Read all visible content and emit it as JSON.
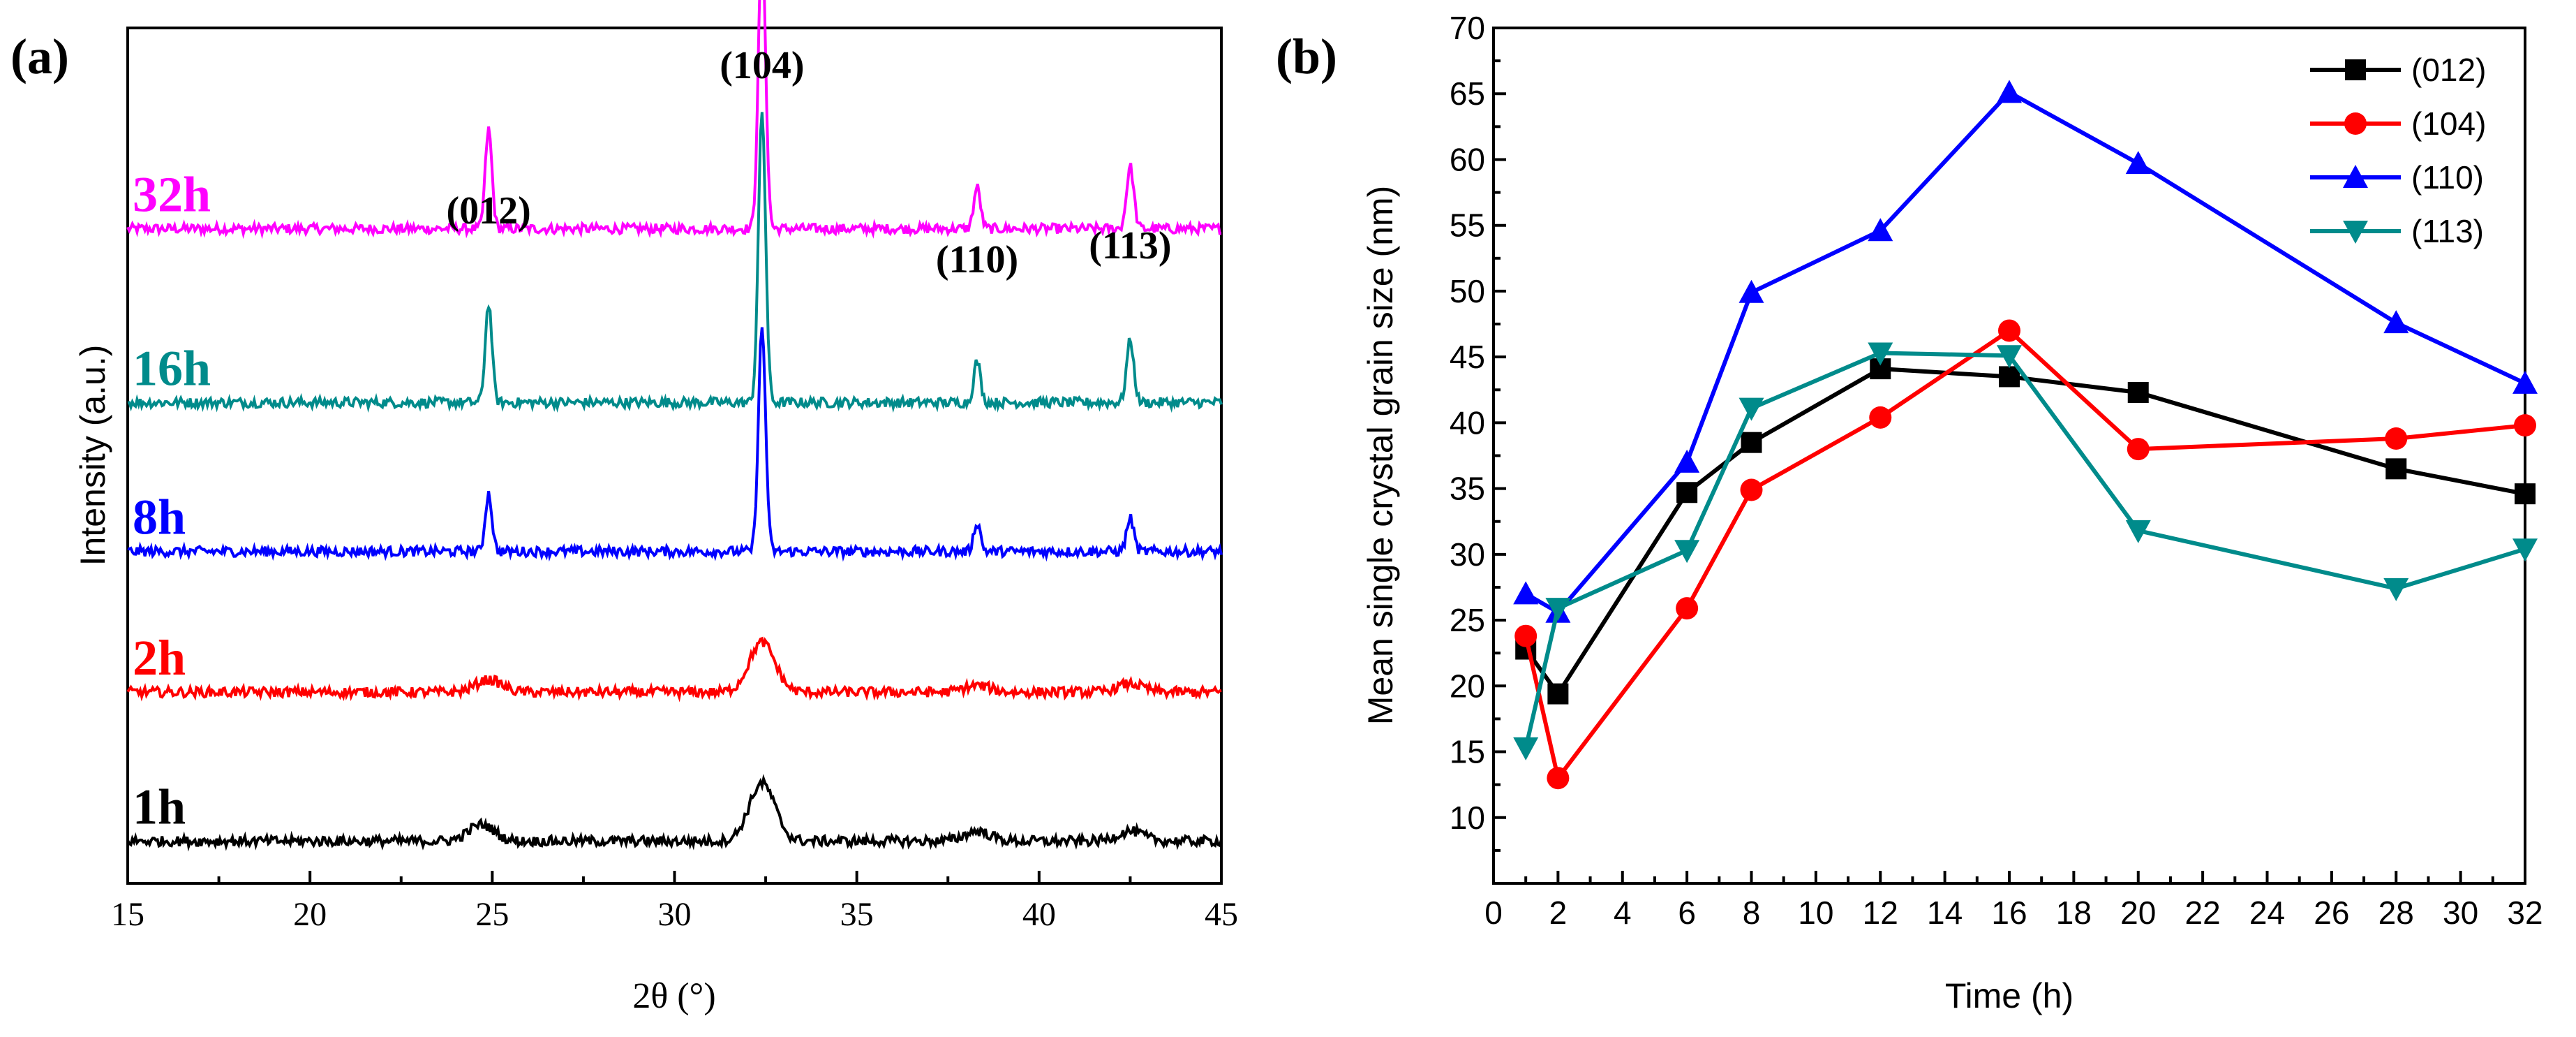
{
  "chart_data": [
    {
      "panel": "(a)",
      "type": "line",
      "xlabel": "2θ (°)",
      "ylabel": "Intensity (a.u.)",
      "xlim": [
        15,
        45
      ],
      "xticks": [
        15,
        20,
        25,
        30,
        35,
        40,
        45
      ],
      "peak_labels": [
        {
          "label": "(012)",
          "x": 24.9
        },
        {
          "label": "(104)",
          "x": 32.4
        },
        {
          "label": "(110)",
          "x": 38.3
        },
        {
          "label": "(113)",
          "x": 42.5
        }
      ],
      "series": [
        {
          "name": "32h",
          "color": "#ff00ff",
          "baseline": 0.77,
          "peaks": [
            {
              "x": 24.9,
              "h": 0.12,
              "w": 0.13
            },
            {
              "x": 32.4,
              "h": 0.35,
              "w": 0.14
            },
            {
              "x": 38.3,
              "h": 0.05,
              "w": 0.13
            },
            {
              "x": 42.5,
              "h": 0.075,
              "w": 0.14
            }
          ]
        },
        {
          "name": "16h",
          "color": "#008b8b",
          "baseline": 0.56,
          "peaks": [
            {
              "x": 24.9,
              "h": 0.12,
              "w": 0.13
            },
            {
              "x": 32.4,
              "h": 0.35,
              "w": 0.14
            },
            {
              "x": 38.3,
              "h": 0.05,
              "w": 0.13
            },
            {
              "x": 42.5,
              "h": 0.075,
              "w": 0.14
            }
          ]
        },
        {
          "name": "8h",
          "color": "#0000ff",
          "baseline": 0.38,
          "peaks": [
            {
              "x": 24.9,
              "h": 0.07,
              "w": 0.13
            },
            {
              "x": 32.4,
              "h": 0.27,
              "w": 0.14
            },
            {
              "x": 38.3,
              "h": 0.035,
              "w": 0.13
            },
            {
              "x": 42.5,
              "h": 0.04,
              "w": 0.14
            }
          ]
        },
        {
          "name": "2h",
          "color": "#ff0000",
          "baseline": 0.21,
          "peaks": [
            {
              "x": 24.9,
              "h": 0.015,
              "w": 0.5
            },
            {
              "x": 32.4,
              "h": 0.06,
              "w": 0.5
            },
            {
              "x": 38.3,
              "h": 0.008,
              "w": 0.5
            },
            {
              "x": 42.5,
              "h": 0.01,
              "w": 0.5
            }
          ]
        },
        {
          "name": "1h",
          "color": "#000000",
          "baseline": 0.03,
          "peaks": [
            {
              "x": 24.7,
              "h": 0.02,
              "w": 0.5
            },
            {
              "x": 32.4,
              "h": 0.07,
              "w": 0.5
            },
            {
              "x": 38.3,
              "h": 0.012,
              "w": 0.5
            },
            {
              "x": 42.5,
              "h": 0.012,
              "w": 0.5
            }
          ]
        }
      ]
    },
    {
      "panel": "(b)",
      "type": "line",
      "xlabel": "Time (h)",
      "ylabel": "Mean single crystal grain size (nm)",
      "xlim": [
        0,
        32
      ],
      "ylim": [
        5,
        70
      ],
      "xticks": [
        0,
        2,
        4,
        6,
        8,
        10,
        12,
        14,
        16,
        18,
        20,
        22,
        24,
        26,
        28,
        30,
        32
      ],
      "yticks": [
        10,
        15,
        20,
        25,
        30,
        35,
        40,
        45,
        50,
        55,
        60,
        65,
        70
      ],
      "legend_position": "top-right",
      "x": [
        1,
        2,
        6,
        8,
        12,
        16,
        20,
        28,
        32
      ],
      "series": [
        {
          "name": "(012)",
          "color": "#000000",
          "marker": "square",
          "values": [
            22.8,
            19.4,
            34.7,
            38.5,
            44.1,
            43.5,
            42.3,
            36.5,
            34.6
          ]
        },
        {
          "name": "(104)",
          "color": "#ff0000",
          "marker": "circle",
          "values": [
            23.8,
            13.0,
            25.9,
            34.9,
            40.4,
            47.0,
            38.0,
            38.8,
            39.8
          ]
        },
        {
          "name": "(110)",
          "color": "#0000ff",
          "marker": "triangle-up",
          "values": [
            27.0,
            25.6,
            37.0,
            49.9,
            54.6,
            65.1,
            59.7,
            47.6,
            43.0
          ]
        },
        {
          "name": "(113)",
          "color": "#008b8b",
          "marker": "triangle-down",
          "values": [
            15.3,
            25.9,
            30.3,
            41.1,
            45.3,
            45.1,
            31.8,
            27.4,
            30.4
          ]
        }
      ]
    }
  ]
}
